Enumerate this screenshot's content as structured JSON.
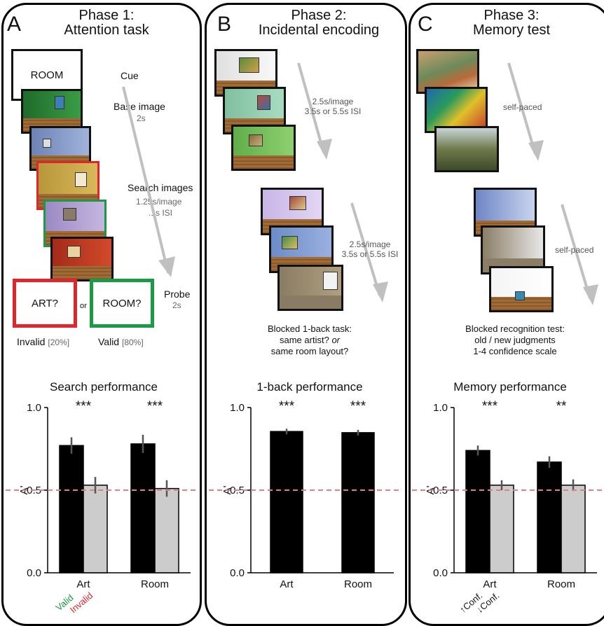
{
  "panels": [
    {
      "letter": "A",
      "title_line1": "Phase 1:",
      "title_line2": "Attention task",
      "cue_box": "ROOM",
      "cue": "Cue",
      "base_image": "Base image",
      "base_time": "2s",
      "search_images": "Search images",
      "search_time1": "1.25s/image",
      "search_time2": ".1s ISI",
      "probe": "Probe",
      "probe_time": "2s",
      "probe_art": "ART?",
      "probe_or": "or",
      "probe_room": "ROOM?",
      "invalid_label": "Invalid",
      "invalid_pct": "[20%]",
      "valid_label": "Valid",
      "valid_pct": "[80%]"
    },
    {
      "letter": "B",
      "title_line1": "Phase 2:",
      "title_line2": "Incidental encoding",
      "timing1_line1": "2.5s/image",
      "timing1_line2": "3.5s or 5.5s ISI",
      "timing2_line1": "2.5s/image",
      "timing2_line2": "3.5s or 5.5s ISI",
      "task_line1": "Blocked 1-back task:",
      "task_line2a": "same artist?",
      "task_line2b": "or",
      "task_line3": "same room layout?"
    },
    {
      "letter": "C",
      "title_line1": "Phase 3:",
      "title_line2": "Memory test",
      "paced1": "self-paced",
      "paced2": "self-paced",
      "task_line1": "Blocked recognition test:",
      "task_line2": "old / new judgments",
      "task_line3": "1-4 confidence scale"
    }
  ],
  "chart_data": [
    {
      "type": "bar",
      "title": "Search performance",
      "ylabel": "A'",
      "ylim": [
        0,
        1
      ],
      "yticks": [
        "0.0",
        "0.5",
        "1.0"
      ],
      "categories": [
        "Art",
        "Room"
      ],
      "series": [
        {
          "name": "Valid",
          "values": [
            0.77,
            0.78
          ],
          "errors": [
            0.05,
            0.055
          ],
          "color": "#000000"
        },
        {
          "name": "Invalid",
          "values": [
            0.53,
            0.51
          ],
          "errors": [
            0.05,
            0.05
          ],
          "color": "#cccccc"
        }
      ],
      "significance": [
        "***",
        "***"
      ],
      "chance_line": 0.5,
      "legend_colors": {
        "Valid": "#1a9a45",
        "Invalid": "#e0262b"
      }
    },
    {
      "type": "bar",
      "title": "1-back performance",
      "ylabel": "A'",
      "ylim": [
        0,
        1
      ],
      "yticks": [
        "0.0",
        "0.5",
        "1.0"
      ],
      "categories": [
        "Art",
        "Room"
      ],
      "series": [
        {
          "name": "",
          "values": [
            0.855,
            0.848
          ],
          "errors": [
            0.017,
            0.017
          ],
          "color": "#000000"
        }
      ],
      "significance": [
        "***",
        "***"
      ],
      "chance_line": 0.5
    },
    {
      "type": "bar",
      "title": "Memory performance",
      "ylabel": "A'",
      "ylim": [
        0,
        1
      ],
      "yticks": [
        "0.0",
        "0.5",
        "1.0"
      ],
      "categories": [
        "Art",
        "Room"
      ],
      "series": [
        {
          "name": "↑Conf.",
          "values": [
            0.74,
            0.67
          ],
          "errors": [
            0.03,
            0.035
          ],
          "color": "#000000"
        },
        {
          "name": "↓Conf.",
          "values": [
            0.53,
            0.53
          ],
          "errors": [
            0.03,
            0.035
          ],
          "color": "#cccccc"
        }
      ],
      "significance": [
        "***",
        "**"
      ],
      "chance_line": 0.5
    }
  ],
  "colors": {
    "chance": "#e08080",
    "invalid_red": "#e0262b",
    "valid_green": "#1a9a45",
    "arrow_grey": "#c0c0c0",
    "frame": "#000000"
  }
}
